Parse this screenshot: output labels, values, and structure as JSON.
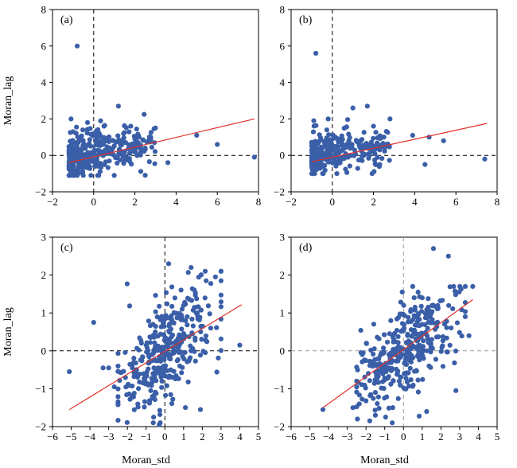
{
  "figure": {
    "shared_ylabel": "Moran_lag",
    "shared_xlabel": "Moran_std"
  },
  "colors": {
    "points": "#3a5fa8",
    "regression": "#e0312a",
    "axes": "#000000"
  },
  "chart_data": [
    {
      "type": "scatter",
      "panel": "(a)",
      "xlabel": "",
      "ylabel": "Moran_lag",
      "xlim": [
        -2,
        8
      ],
      "ylim": [
        -2,
        8
      ],
      "xticks": [
        -2,
        0,
        2,
        4,
        6,
        8
      ],
      "yticks": [
        -2,
        0,
        2,
        4,
        6,
        8
      ],
      "xtick_labels": [
        "−2",
        "0",
        "2",
        "4",
        "6",
        "8"
      ],
      "ytick_labels": [
        "−2",
        "0",
        "2",
        "4",
        "6",
        "8"
      ],
      "reference_lines": {
        "x": 0,
        "y": 0,
        "style": "dashed",
        "color": "#000000"
      },
      "regression_line": {
        "x": [
          -1.2,
          7.8
        ],
        "y": [
          -0.4,
          2.0
        ]
      },
      "cluster": {
        "x_range": [
          -1.2,
          3.0
        ],
        "y_range": [
          -1.1,
          2.5
        ],
        "count": 340
      },
      "points": [
        {
          "x": -0.8,
          "y": 6.0
        },
        {
          "x": -1.1,
          "y": 2.0
        },
        {
          "x": 1.2,
          "y": 2.7
        },
        {
          "x": 3.0,
          "y": 1.5
        },
        {
          "x": 5.0,
          "y": 1.1
        },
        {
          "x": 6.0,
          "y": 0.6
        },
        {
          "x": 7.8,
          "y": -0.1
        },
        {
          "x": 3.6,
          "y": -0.4
        },
        {
          "x": -0.3,
          "y": 1.8
        },
        {
          "x": 0.5,
          "y": 1.6
        },
        {
          "x": 1.8,
          "y": 1.6
        },
        {
          "x": 2.2,
          "y": 1.0
        },
        {
          "x": 2.5,
          "y": 0.4
        },
        {
          "x": 1.5,
          "y": -0.3
        },
        {
          "x": 2.0,
          "y": 0.9
        }
      ]
    },
    {
      "type": "scatter",
      "panel": "(b)",
      "xlabel": "",
      "ylabel": "",
      "xlim": [
        -2,
        8
      ],
      "ylim": [
        -2,
        8
      ],
      "xticks": [
        -2,
        0,
        2,
        4,
        6,
        8
      ],
      "yticks": [
        -2,
        0,
        2,
        4,
        6,
        8
      ],
      "xtick_labels": [
        "−2",
        "0",
        "2",
        "4",
        "6",
        "8"
      ],
      "ytick_labels": [
        "−2",
        "0",
        "2",
        "4",
        "6",
        "8"
      ],
      "reference_lines": {
        "x": 0,
        "y": 0,
        "style": "dashed",
        "color": "#000000"
      },
      "regression_line": {
        "x": [
          -1.0,
          7.5
        ],
        "y": [
          -0.35,
          1.75
        ]
      },
      "cluster": {
        "x_range": [
          -1.0,
          2.8
        ],
        "y_range": [
          -1.0,
          2.0
        ],
        "count": 330
      },
      "points": [
        {
          "x": -0.8,
          "y": 5.6
        },
        {
          "x": -0.9,
          "y": 1.9
        },
        {
          "x": 1.7,
          "y": 2.7
        },
        {
          "x": 2.8,
          "y": 2.0
        },
        {
          "x": 3.9,
          "y": 1.1
        },
        {
          "x": 4.7,
          "y": 1.0
        },
        {
          "x": 5.4,
          "y": 0.8
        },
        {
          "x": 7.4,
          "y": -0.2
        },
        {
          "x": 4.5,
          "y": -0.5
        },
        {
          "x": 1.0,
          "y": 2.6
        },
        {
          "x": 2.0,
          "y": 1.6
        },
        {
          "x": 0.6,
          "y": 1.5
        },
        {
          "x": -0.2,
          "y": 2.0
        },
        {
          "x": 2.3,
          "y": 0.3
        }
      ]
    },
    {
      "type": "scatter",
      "panel": "(c)",
      "xlabel": "Moran_std",
      "ylabel": "Moran_lag",
      "xlim": [
        -6,
        5
      ],
      "ylim": [
        -2,
        3
      ],
      "xticks": [
        -6,
        -5,
        -4,
        -3,
        -2,
        -1,
        0,
        1,
        2,
        3,
        4,
        5
      ],
      "yticks": [
        -2,
        -1,
        0,
        1,
        2,
        3
      ],
      "xtick_labels": [
        "−6",
        "−5",
        "−4",
        "−3",
        "−2",
        "−1",
        "0",
        "1",
        "2",
        "3",
        "4",
        "5"
      ],
      "ytick_labels": [
        "−2",
        "−1",
        "0",
        "1",
        "2",
        "3"
      ],
      "reference_lines": {
        "x": 0,
        "y": 0,
        "style": "dashed",
        "color": "#000000"
      },
      "regression_line": {
        "x": [
          -5.1,
          4.1
        ],
        "y": [
          -1.55,
          1.22
        ]
      },
      "cluster": {
        "x_range": [
          -2.5,
          3.0
        ],
        "y_range": [
          -1.9,
          2.1
        ],
        "count": 360
      },
      "points": [
        {
          "x": -5.1,
          "y": -0.55
        },
        {
          "x": -3.8,
          "y": 0.75
        },
        {
          "x": -3.3,
          "y": -0.45
        },
        {
          "x": -3.0,
          "y": -0.45
        },
        {
          "x": 4.0,
          "y": 0.15
        },
        {
          "x": 0.2,
          "y": 2.3
        },
        {
          "x": 2.7,
          "y": 1.95
        },
        {
          "x": 1.4,
          "y": 2.2
        },
        {
          "x": -0.3,
          "y": -1.95
        },
        {
          "x": 1.9,
          "y": -1.55
        },
        {
          "x": -0.6,
          "y": -1.75
        },
        {
          "x": -2.7,
          "y": -0.95
        }
      ]
    },
    {
      "type": "scatter",
      "panel": "(d)",
      "xlabel": "Moran_std",
      "ylabel": "",
      "xlim": [
        -6,
        5
      ],
      "ylim": [
        -2,
        3
      ],
      "xticks": [
        -6,
        -5,
        -4,
        -3,
        -2,
        -1,
        0,
        1,
        2,
        3,
        4,
        5
      ],
      "yticks": [
        -2,
        -1,
        0,
        1,
        2,
        3
      ],
      "xtick_labels": [
        "−6",
        "−5",
        "−4",
        "−3",
        "−2",
        "−1",
        "0",
        "1",
        "2",
        "3",
        "4",
        "5"
      ],
      "ytick_labels": [
        "−2",
        "−1",
        "0",
        "1",
        "2",
        "3"
      ],
      "reference_lines": {
        "x": 0,
        "y": 0,
        "style": "dashed",
        "color": "#999999"
      },
      "regression_line": {
        "x": [
          -4.3,
          3.7
        ],
        "y": [
          -1.5,
          1.35
        ]
      },
      "cluster": {
        "x_range": [
          -2.5,
          3.3
        ],
        "y_range": [
          -1.8,
          1.7
        ],
        "count": 350
      },
      "points": [
        {
          "x": -4.3,
          "y": -1.55
        },
        {
          "x": 1.6,
          "y": 2.7
        },
        {
          "x": 2.4,
          "y": 2.5
        },
        {
          "x": 3.7,
          "y": 1.7
        },
        {
          "x": 2.8,
          "y": -1.05
        },
        {
          "x": -1.8,
          "y": -1.85
        },
        {
          "x": -0.6,
          "y": -1.9
        },
        {
          "x": -1.5,
          "y": -1.7
        },
        {
          "x": 1.0,
          "y": 1.4
        },
        {
          "x": 3.5,
          "y": 0.4
        },
        {
          "x": -2.7,
          "y": -1.5
        }
      ]
    }
  ]
}
